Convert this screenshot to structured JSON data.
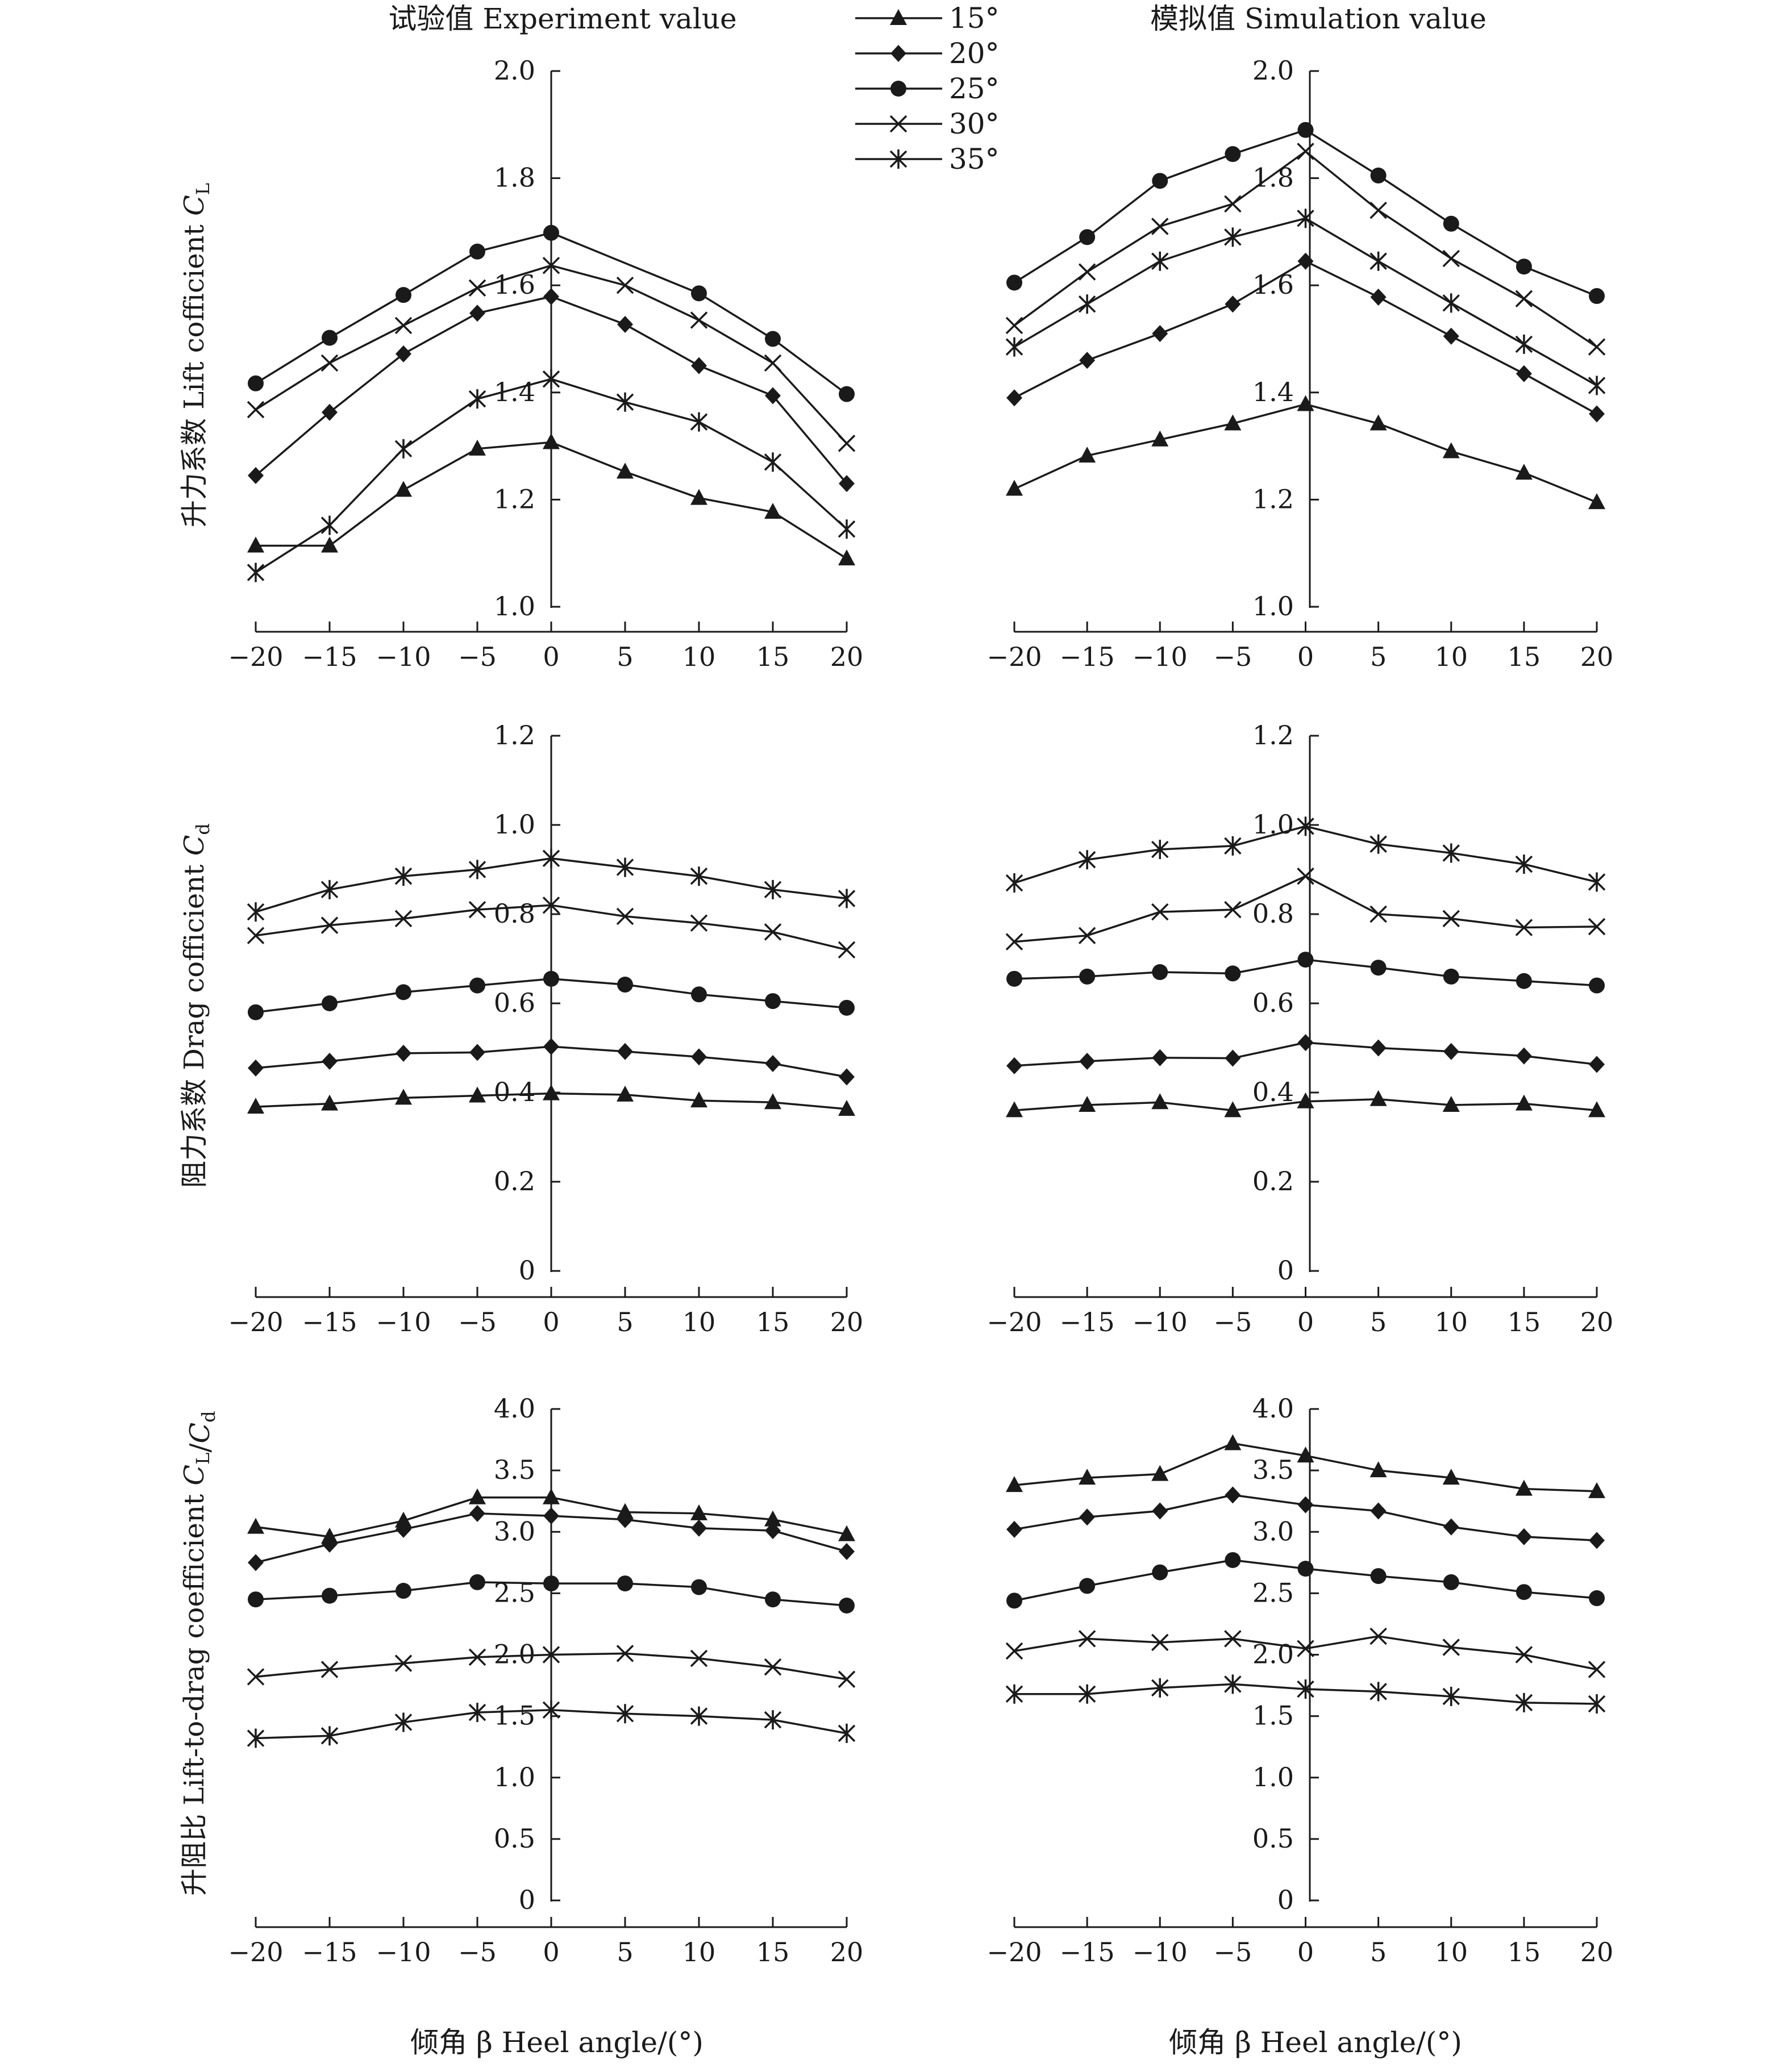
{
  "page": {
    "title_left": "试验值 Experiment value",
    "title_right": "模拟值 Simulation value",
    "xlabel": "倾角 β Heel angle/(°)"
  },
  "legend": [
    {
      "label": "15°",
      "marker": "triangle"
    },
    {
      "label": "20°",
      "marker": "diamond"
    },
    {
      "label": "25°",
      "marker": "circle"
    },
    {
      "label": "30°",
      "marker": "x"
    },
    {
      "label": "35°",
      "marker": "asterisk"
    }
  ],
  "colors": {
    "ink": "#1a1a1a",
    "background": "#ffffff"
  },
  "chart_data": [
    {
      "id": "lift-experiment",
      "type": "line",
      "title": "试验值 Experiment value",
      "ylabel": "升力系数 Lift cofficient C_L",
      "x": [
        -20,
        -15,
        -10,
        -5,
        0,
        5,
        10,
        15,
        20
      ],
      "ylim": [
        1.0,
        2.0
      ],
      "yticks": [
        "1.0",
        "1.2",
        "1.4",
        "1.6",
        "1.8",
        "2.0"
      ],
      "xticks": [
        "−20",
        "−15",
        "−10",
        "−5",
        "0",
        "5",
        "10",
        "15",
        "20"
      ],
      "series": [
        {
          "name": "15°",
          "marker": "triangle",
          "values": [
            1.114,
            1.114,
            1.218,
            1.295,
            1.307,
            1.252,
            1.203,
            1.177,
            1.09
          ]
        },
        {
          "name": "20°",
          "marker": "diamond",
          "values": [
            1.245,
            1.363,
            1.472,
            1.548,
            1.579,
            1.527,
            1.45,
            1.394,
            1.23
          ]
        },
        {
          "name": "25°",
          "marker": "circle",
          "values": [
            1.417,
            1.502,
            1.582,
            1.663,
            1.698,
            null,
            1.585,
            1.5,
            1.397
          ]
        },
        {
          "name": "30°",
          "marker": "x",
          "values": [
            1.368,
            1.455,
            1.525,
            1.595,
            1.637,
            1.6,
            1.535,
            1.455,
            1.305
          ]
        },
        {
          "name": "35°",
          "marker": "asterisk",
          "values": [
            1.064,
            1.152,
            1.295,
            1.388,
            1.425,
            1.382,
            1.345,
            1.27,
            1.145
          ]
        }
      ]
    },
    {
      "id": "lift-simulation",
      "type": "line",
      "title": "模拟值 Simulation value",
      "ylabel": "",
      "x": [
        -20,
        -15,
        -10,
        -5,
        0,
        5,
        10,
        15,
        20
      ],
      "ylim": [
        1.0,
        2.0
      ],
      "yticks": [
        "1.0",
        "1.2",
        "1.4",
        "1.6",
        "1.8",
        "2.0"
      ],
      "xticks": [
        "−20",
        "−15",
        "−10",
        "−5",
        "0",
        "5",
        "10",
        "15",
        "20"
      ],
      "series": [
        {
          "name": "15°",
          "marker": "triangle",
          "values": [
            1.22,
            1.282,
            1.312,
            1.342,
            1.378,
            1.342,
            1.29,
            1.25,
            1.195
          ]
        },
        {
          "name": "20°",
          "marker": "diamond",
          "values": [
            1.39,
            1.46,
            1.51,
            1.565,
            1.645,
            1.578,
            1.505,
            1.435,
            1.36
          ]
        },
        {
          "name": "25°",
          "marker": "circle",
          "values": [
            1.605,
            1.69,
            1.795,
            1.845,
            1.89,
            1.805,
            1.715,
            1.635,
            1.58
          ]
        },
        {
          "name": "30°",
          "marker": "x",
          "values": [
            1.525,
            1.625,
            1.71,
            1.752,
            1.85,
            1.74,
            1.65,
            1.575,
            1.485
          ]
        },
        {
          "name": "35°",
          "marker": "asterisk",
          "values": [
            1.485,
            1.565,
            1.645,
            1.69,
            1.725,
            1.645,
            1.567,
            1.49,
            1.413
          ]
        }
      ]
    },
    {
      "id": "drag-experiment",
      "type": "line",
      "title": "",
      "ylabel": "阻力系数 Drag cofficient C_d",
      "x": [
        -20,
        -15,
        -10,
        -5,
        0,
        5,
        10,
        15,
        20
      ],
      "ylim": [
        0,
        1.2
      ],
      "yticks": [
        "0",
        "0.2",
        "0.4",
        "0.6",
        "0.8",
        "1.0",
        "1.2"
      ],
      "xticks": [
        "−20",
        "−15",
        "−10",
        "−5",
        "0",
        "5",
        "10",
        "15",
        "20"
      ],
      "series": [
        {
          "name": "15°",
          "marker": "triangle",
          "values": [
            0.368,
            0.375,
            0.388,
            0.393,
            0.398,
            0.395,
            0.382,
            0.378,
            0.363
          ]
        },
        {
          "name": "20°",
          "marker": "diamond",
          "values": [
            0.455,
            0.47,
            0.488,
            0.49,
            0.503,
            0.492,
            0.48,
            0.465,
            0.435
          ]
        },
        {
          "name": "25°",
          "marker": "circle",
          "values": [
            0.58,
            0.6,
            0.625,
            0.64,
            0.655,
            0.642,
            0.62,
            0.605,
            0.59
          ]
        },
        {
          "name": "30°",
          "marker": "x",
          "values": [
            0.752,
            0.775,
            0.79,
            0.81,
            0.82,
            0.795,
            0.78,
            0.76,
            0.72
          ]
        },
        {
          "name": "35°",
          "marker": "asterisk",
          "values": [
            0.805,
            0.855,
            0.885,
            0.9,
            0.925,
            0.905,
            0.885,
            0.855,
            0.835
          ]
        }
      ]
    },
    {
      "id": "drag-simulation",
      "type": "line",
      "title": "",
      "ylabel": "",
      "x": [
        -20,
        -15,
        -10,
        -5,
        0,
        5,
        10,
        15,
        20
      ],
      "ylim": [
        0,
        1.2
      ],
      "yticks": [
        "0",
        "0.2",
        "0.4",
        "0.6",
        "0.8",
        "1.0",
        "1.2"
      ],
      "xticks": [
        "−20",
        "−15",
        "−10",
        "−5",
        "0",
        "5",
        "10",
        "15",
        "20"
      ],
      "series": [
        {
          "name": "15°",
          "marker": "triangle",
          "values": [
            0.36,
            0.372,
            0.378,
            0.36,
            0.38,
            0.385,
            0.372,
            0.375,
            0.36
          ]
        },
        {
          "name": "20°",
          "marker": "diamond",
          "values": [
            0.46,
            0.47,
            0.478,
            0.477,
            0.512,
            0.5,
            0.492,
            0.482,
            0.463
          ]
        },
        {
          "name": "25°",
          "marker": "circle",
          "values": [
            0.655,
            0.66,
            0.67,
            0.667,
            0.698,
            0.68,
            0.66,
            0.65,
            0.64
          ]
        },
        {
          "name": "30°",
          "marker": "x",
          "values": [
            0.738,
            0.752,
            0.805,
            0.81,
            0.885,
            0.8,
            0.79,
            0.77,
            0.772
          ]
        },
        {
          "name": "35°",
          "marker": "asterisk",
          "values": [
            0.87,
            0.922,
            0.945,
            0.953,
            0.997,
            0.957,
            0.937,
            0.912,
            0.872
          ]
        }
      ]
    },
    {
      "id": "ratio-experiment",
      "type": "line",
      "title": "",
      "ylabel": "升阻比 Lift-to-drag coefficient C_L/C_d",
      "x": [
        -20,
        -15,
        -10,
        -5,
        0,
        5,
        10,
        15,
        20
      ],
      "ylim": [
        0,
        4.0
      ],
      "yticks": [
        "0",
        "0.5",
        "1.0",
        "1.5",
        "2.0",
        "2.5",
        "3.0",
        "3.5",
        "4.0"
      ],
      "xticks": [
        "−20",
        "−15",
        "−10",
        "−5",
        "0",
        "5",
        "10",
        "15",
        "20"
      ],
      "series": [
        {
          "name": "15°",
          "marker": "triangle",
          "values": [
            3.04,
            2.96,
            3.09,
            3.28,
            3.28,
            3.16,
            3.15,
            3.1,
            2.98
          ]
        },
        {
          "name": "20°",
          "marker": "diamond",
          "values": [
            2.75,
            2.9,
            3.02,
            3.15,
            3.13,
            3.1,
            3.03,
            3.01,
            2.84
          ]
        },
        {
          "name": "25°",
          "marker": "circle",
          "values": [
            2.45,
            2.48,
            2.52,
            2.59,
            2.58,
            2.58,
            2.55,
            2.45,
            2.4
          ]
        },
        {
          "name": "30°",
          "marker": "x",
          "values": [
            1.82,
            1.88,
            1.93,
            1.98,
            2.0,
            2.01,
            1.97,
            1.9,
            1.8
          ]
        },
        {
          "name": "35°",
          "marker": "asterisk",
          "values": [
            1.32,
            1.34,
            1.45,
            1.53,
            1.55,
            1.52,
            1.5,
            1.47,
            1.36
          ]
        }
      ]
    },
    {
      "id": "ratio-simulation",
      "type": "line",
      "title": "",
      "ylabel": "",
      "x": [
        -20,
        -15,
        -10,
        -5,
        0,
        5,
        10,
        15,
        20
      ],
      "ylim": [
        0,
        4.0
      ],
      "yticks": [
        "0",
        "0.5",
        "1.0",
        "1.5",
        "2.0",
        "2.5",
        "3.0",
        "3.5",
        "4.0"
      ],
      "xticks": [
        "−20",
        "−15",
        "−10",
        "−5",
        "0",
        "5",
        "10",
        "15",
        "20"
      ],
      "series": [
        {
          "name": "15°",
          "marker": "triangle",
          "values": [
            3.38,
            3.44,
            3.47,
            3.72,
            3.62,
            3.5,
            3.44,
            3.35,
            3.33
          ]
        },
        {
          "name": "20°",
          "marker": "diamond",
          "values": [
            3.02,
            3.12,
            3.17,
            3.3,
            3.22,
            3.17,
            3.04,
            2.96,
            2.93
          ]
        },
        {
          "name": "25°",
          "marker": "circle",
          "values": [
            2.44,
            2.56,
            2.67,
            2.77,
            2.7,
            2.64,
            2.59,
            2.51,
            2.46
          ]
        },
        {
          "name": "30°",
          "marker": "x",
          "values": [
            2.03,
            2.13,
            2.1,
            2.13,
            2.05,
            2.15,
            2.06,
            2.0,
            1.88
          ]
        },
        {
          "name": "35°",
          "marker": "asterisk",
          "values": [
            1.68,
            1.68,
            1.73,
            1.76,
            1.72,
            1.7,
            1.66,
            1.61,
            1.6
          ]
        }
      ]
    }
  ]
}
